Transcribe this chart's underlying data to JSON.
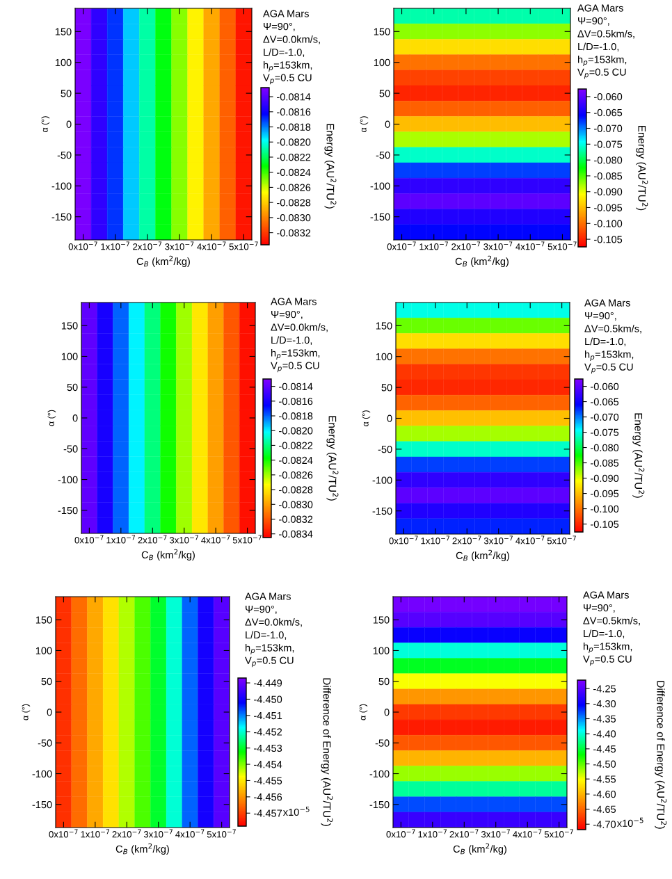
{
  "chart_data": [
    {
      "type": "heatmap",
      "xlabel": "C$_{B}$ (km$^{2}$/kg)",
      "ylabel": "α (°)",
      "clabel": "Energy (AU$^{2}$/TU$^{2}$)",
      "annotations": [
        "AGA Mars",
        "Ψ=90°,",
        "ΔV=0.0km/s,",
        "L/D=-1.0,",
        "h$_{p}$=153km,",
        "V$_{p}$=0.5 CU"
      ],
      "categories": [
        "0x10$^{−7}$",
        null,
        "1x10$^{−7}$",
        null,
        "2x10$^{−7}$",
        null,
        "3x10$^{−7}$",
        null,
        "4x10$^{−7}$",
        null,
        "5x10$^{−7}$"
      ],
      "y_categories": [
        null,
        "150",
        null,
        "100",
        null,
        "50",
        null,
        "0",
        null,
        "-50",
        null,
        "-100",
        null,
        "-150",
        null
      ],
      "cells": [
        [
          -0.0813,
          -0.0815,
          -0.0817,
          -0.0819,
          -0.0821,
          -0.0823,
          -0.0825,
          -0.0827,
          -0.0829,
          -0.0831,
          -0.0833
        ],
        [
          -0.0813,
          -0.0815,
          -0.0817,
          -0.0819,
          -0.0821,
          -0.0823,
          -0.0825,
          -0.0827,
          -0.0829,
          -0.0831,
          -0.0833
        ],
        [
          -0.0813,
          -0.0815,
          -0.0817,
          -0.0819,
          -0.0821,
          -0.0823,
          -0.0825,
          -0.0827,
          -0.0829,
          -0.0831,
          -0.0833
        ],
        [
          -0.0813,
          -0.0815,
          -0.0817,
          -0.0819,
          -0.0821,
          -0.0823,
          -0.0825,
          -0.0827,
          -0.0829,
          -0.0831,
          -0.0833
        ],
        [
          -0.0813,
          -0.0815,
          -0.0817,
          -0.0819,
          -0.0821,
          -0.0823,
          -0.0825,
          -0.0827,
          -0.0829,
          -0.0831,
          -0.0833
        ],
        [
          -0.0813,
          -0.0815,
          -0.0817,
          -0.0819,
          -0.0821,
          -0.0823,
          -0.0825,
          -0.0827,
          -0.0829,
          -0.0831,
          -0.0833
        ],
        [
          -0.0813,
          -0.0815,
          -0.0817,
          -0.0819,
          -0.0821,
          -0.0823,
          -0.0825,
          -0.0827,
          -0.0829,
          -0.0831,
          -0.0833
        ],
        [
          -0.0813,
          -0.0815,
          -0.0817,
          -0.0819,
          -0.0821,
          -0.0823,
          -0.0825,
          -0.0827,
          -0.0829,
          -0.0831,
          -0.0833
        ],
        [
          -0.0813,
          -0.0815,
          -0.0817,
          -0.0819,
          -0.0821,
          -0.0823,
          -0.0825,
          -0.0827,
          -0.0829,
          -0.0831,
          -0.0833
        ],
        [
          -0.0813,
          -0.0815,
          -0.0817,
          -0.0819,
          -0.0821,
          -0.0823,
          -0.0825,
          -0.0827,
          -0.0829,
          -0.0831,
          -0.0833
        ],
        [
          -0.0813,
          -0.0815,
          -0.0817,
          -0.0819,
          -0.0821,
          -0.0823,
          -0.0825,
          -0.0827,
          -0.0829,
          -0.0831,
          -0.0833
        ],
        [
          -0.0813,
          -0.0815,
          -0.0817,
          -0.0819,
          -0.0821,
          -0.0823,
          -0.0825,
          -0.0827,
          -0.0829,
          -0.0831,
          -0.0833
        ],
        [
          -0.0813,
          -0.0815,
          -0.0817,
          -0.0819,
          -0.0821,
          -0.0823,
          -0.0825,
          -0.0827,
          -0.0829,
          -0.0831,
          -0.0833
        ],
        [
          -0.0813,
          -0.0815,
          -0.0817,
          -0.0819,
          -0.0821,
          -0.0823,
          -0.0825,
          -0.0827,
          -0.0829,
          -0.0831,
          -0.0833
        ],
        [
          -0.0813,
          -0.0815,
          -0.0817,
          -0.0819,
          -0.0821,
          -0.0823,
          -0.0825,
          -0.0827,
          -0.0829,
          -0.0831,
          -0.0833
        ]
      ],
      "clim": [
        -0.08336,
        -0.08128
      ],
      "cticks": [
        {
          "value": -0.0814,
          "label": "-0.0814"
        },
        {
          "value": -0.0816,
          "label": "-0.0816"
        },
        {
          "value": -0.0818,
          "label": "-0.0818"
        },
        {
          "value": -0.082,
          "label": "-0.0820"
        },
        {
          "value": -0.0822,
          "label": "-0.0822"
        },
        {
          "value": -0.0824,
          "label": "-0.0824"
        },
        {
          "value": -0.0826,
          "label": "-0.0826"
        },
        {
          "value": -0.0828,
          "label": "-0.0828"
        },
        {
          "value": -0.083,
          "label": "-0.0830"
        },
        {
          "value": -0.0832,
          "label": "-0.0832"
        }
      ]
    },
    {
      "type": "heatmap",
      "xlabel": "C$_{B}$ (km$^{2}$/kg)",
      "ylabel": "α (°)",
      "clabel": "Energy (AU$^{2}$/TU$^{2}$)",
      "annotations": [
        "AGA Mars",
        "Ψ=90°,",
        "ΔV=0.5km/s,",
        "L/D=-1.0,",
        "h$_{p}$=153km,",
        "V$_{p}$=0.5 CU"
      ],
      "categories": [
        "0x10$^{−7}$",
        null,
        "1x10$^{−7}$",
        null,
        "2x10$^{−7}$",
        null,
        "3x10$^{−7}$",
        null,
        "4x10$^{−7}$",
        null,
        "5x10$^{−7}$"
      ],
      "y_categories": [
        null,
        "150",
        null,
        "100",
        null,
        "50",
        null,
        "0",
        null,
        "-50",
        null,
        "-100",
        null,
        "-150",
        null
      ],
      "cells": [
        [
          -0.077,
          -0.077,
          -0.077,
          -0.077,
          -0.077,
          -0.077,
          -0.077,
          -0.077,
          -0.077,
          -0.077,
          -0.077
        ],
        [
          -0.087,
          -0.087,
          -0.087,
          -0.087,
          -0.087,
          -0.087,
          -0.087,
          -0.087,
          -0.087,
          -0.087,
          -0.087
        ],
        [
          -0.093,
          -0.093,
          -0.093,
          -0.093,
          -0.093,
          -0.093,
          -0.093,
          -0.093,
          -0.093,
          -0.093,
          -0.093
        ],
        [
          -0.1,
          -0.1,
          -0.1,
          -0.1,
          -0.1,
          -0.1,
          -0.1,
          -0.1,
          -0.1,
          -0.1,
          -0.1
        ],
        [
          -0.103,
          -0.103,
          -0.103,
          -0.103,
          -0.103,
          -0.103,
          -0.103,
          -0.103,
          -0.103,
          -0.103,
          -0.103
        ],
        [
          -0.105,
          -0.105,
          -0.105,
          -0.105,
          -0.105,
          -0.105,
          -0.105,
          -0.105,
          -0.105,
          -0.105,
          -0.105
        ],
        [
          -0.101,
          -0.101,
          -0.101,
          -0.101,
          -0.101,
          -0.101,
          -0.101,
          -0.101,
          -0.101,
          -0.101,
          -0.101
        ],
        [
          -0.095,
          -0.095,
          -0.095,
          -0.095,
          -0.095,
          -0.095,
          -0.095,
          -0.095,
          -0.095,
          -0.095,
          -0.095
        ],
        [
          -0.088,
          -0.088,
          -0.088,
          -0.088,
          -0.088,
          -0.088,
          -0.088,
          -0.088,
          -0.088,
          -0.088,
          -0.088
        ],
        [
          -0.076,
          -0.076,
          -0.076,
          -0.076,
          -0.076,
          -0.076,
          -0.076,
          -0.076,
          -0.076,
          -0.076,
          -0.076
        ],
        [
          -0.068,
          -0.068,
          -0.068,
          -0.068,
          -0.068,
          -0.068,
          -0.068,
          -0.068,
          -0.068,
          -0.068,
          -0.068
        ],
        [
          -0.063,
          -0.063,
          -0.063,
          -0.063,
          -0.063,
          -0.063,
          -0.063,
          -0.063,
          -0.063,
          -0.063,
          -0.063
        ],
        [
          -0.06,
          -0.06,
          -0.06,
          -0.06,
          -0.06,
          -0.06,
          -0.06,
          -0.06,
          -0.06,
          -0.06,
          -0.06
        ],
        [
          -0.064,
          -0.064,
          -0.064,
          -0.064,
          -0.064,
          -0.064,
          -0.064,
          -0.064,
          -0.064,
          -0.064,
          -0.064
        ],
        [
          -0.066,
          -0.066,
          -0.066,
          -0.066,
          -0.066,
          -0.066,
          -0.066,
          -0.066,
          -0.066,
          -0.066,
          -0.066
        ]
      ],
      "clim": [
        -0.1074,
        -0.0576
      ],
      "cticks": [
        {
          "value": -0.06,
          "label": "-0.060"
        },
        {
          "value": -0.065,
          "label": "-0.065"
        },
        {
          "value": -0.07,
          "label": "-0.070"
        },
        {
          "value": -0.075,
          "label": "-0.075"
        },
        {
          "value": -0.08,
          "label": "-0.080"
        },
        {
          "value": -0.085,
          "label": "-0.085"
        },
        {
          "value": -0.09,
          "label": "-0.090"
        },
        {
          "value": -0.095,
          "label": "-0.095"
        },
        {
          "value": -0.1,
          "label": "-0.100"
        },
        {
          "value": -0.105,
          "label": "-0.105"
        }
      ]
    },
    {
      "type": "heatmap",
      "xlabel": "C$_{B}$ (km$^{2}$/kg)",
      "ylabel": "α (°)",
      "clabel": "Energy (AU$^{2}$/TU$^{2}$)",
      "annotations": [
        "AGA Mars",
        "Ψ=90°,",
        "ΔV=0.0km/s,",
        "L/D=-1.0,",
        "h$_{p}$=153km,",
        "V$_{p}$=0.5 CU"
      ],
      "categories": [
        "0x10$^{−7}$",
        null,
        "1x10$^{−7}$",
        null,
        "2x10$^{−7}$",
        null,
        "3x10$^{−7}$",
        null,
        "4x10$^{−7}$",
        null,
        "5x10$^{−7}$"
      ],
      "y_categories": [
        null,
        "150",
        null,
        "100",
        null,
        "50",
        null,
        "0",
        null,
        "-50",
        null,
        "-100",
        null,
        "-150",
        null
      ],
      "cells": [
        [
          -0.0814,
          -0.0816,
          -0.0818,
          -0.082,
          -0.0822,
          -0.0824,
          -0.0826,
          -0.0828,
          -0.083,
          -0.0832,
          -0.0834
        ],
        [
          -0.0814,
          -0.0816,
          -0.0818,
          -0.082,
          -0.0822,
          -0.0824,
          -0.0826,
          -0.0828,
          -0.083,
          -0.0832,
          -0.0834
        ],
        [
          -0.0814,
          -0.0816,
          -0.0818,
          -0.082,
          -0.0822,
          -0.0824,
          -0.0826,
          -0.0828,
          -0.083,
          -0.0832,
          -0.0834
        ],
        [
          -0.0814,
          -0.0816,
          -0.0818,
          -0.082,
          -0.0822,
          -0.0824,
          -0.0826,
          -0.0828,
          -0.083,
          -0.0832,
          -0.0834
        ],
        [
          -0.0814,
          -0.0816,
          -0.0818,
          -0.082,
          -0.0822,
          -0.0824,
          -0.0826,
          -0.0828,
          -0.083,
          -0.0832,
          -0.0834
        ],
        [
          -0.0814,
          -0.0816,
          -0.0818,
          -0.082,
          -0.0822,
          -0.0824,
          -0.0826,
          -0.0828,
          -0.083,
          -0.0832,
          -0.0834
        ],
        [
          -0.0814,
          -0.0816,
          -0.0818,
          -0.082,
          -0.0822,
          -0.0824,
          -0.0826,
          -0.0828,
          -0.083,
          -0.0832,
          -0.0834
        ],
        [
          -0.0814,
          -0.0816,
          -0.0818,
          -0.082,
          -0.0822,
          -0.0824,
          -0.0826,
          -0.0828,
          -0.083,
          -0.0832,
          -0.0834
        ],
        [
          -0.0814,
          -0.0816,
          -0.0818,
          -0.082,
          -0.0822,
          -0.0824,
          -0.0826,
          -0.0828,
          -0.083,
          -0.0832,
          -0.0834
        ],
        [
          -0.0814,
          -0.0816,
          -0.0818,
          -0.082,
          -0.0822,
          -0.0824,
          -0.0826,
          -0.0828,
          -0.083,
          -0.0832,
          -0.0834
        ],
        [
          -0.0814,
          -0.0816,
          -0.0818,
          -0.082,
          -0.0822,
          -0.0824,
          -0.0826,
          -0.0828,
          -0.083,
          -0.0832,
          -0.0834
        ],
        [
          -0.0814,
          -0.0816,
          -0.0818,
          -0.082,
          -0.0822,
          -0.0824,
          -0.0826,
          -0.0828,
          -0.083,
          -0.0832,
          -0.0834
        ],
        [
          -0.0814,
          -0.0816,
          -0.0818,
          -0.082,
          -0.0822,
          -0.0824,
          -0.0826,
          -0.0828,
          -0.083,
          -0.0832,
          -0.0834
        ],
        [
          -0.0814,
          -0.0816,
          -0.0818,
          -0.082,
          -0.0822,
          -0.0824,
          -0.0826,
          -0.0828,
          -0.083,
          -0.0832,
          -0.0834
        ],
        [
          -0.0814,
          -0.0816,
          -0.0818,
          -0.082,
          -0.0822,
          -0.0824,
          -0.0826,
          -0.0828,
          -0.083,
          -0.0832,
          -0.0834
        ]
      ],
      "clim": [
        -0.08345,
        -0.0813
      ],
      "cticks": [
        {
          "value": -0.0814,
          "label": "-0.0814"
        },
        {
          "value": -0.0816,
          "label": "-0.0816"
        },
        {
          "value": -0.0818,
          "label": "-0.0818"
        },
        {
          "value": -0.082,
          "label": "-0.0820"
        },
        {
          "value": -0.0822,
          "label": "-0.0822"
        },
        {
          "value": -0.0824,
          "label": "-0.0824"
        },
        {
          "value": -0.0826,
          "label": "-0.0826"
        },
        {
          "value": -0.0828,
          "label": "-0.0828"
        },
        {
          "value": -0.083,
          "label": "-0.0830"
        },
        {
          "value": -0.0832,
          "label": "-0.0832"
        },
        {
          "value": -0.0834,
          "label": "-0.0834"
        }
      ]
    },
    {
      "type": "heatmap",
      "xlabel": "C$_{B}$ (km$^{2}$/kg)",
      "ylabel": "α (°)",
      "clabel": "Energy (AU$^{2}$/TU$^{2}$)",
      "annotations": [
        "AGA Mars",
        "Ψ=90°,",
        "ΔV=0.5km/s,",
        "L/D=-1.0,",
        "h$_{p}$=153km,",
        "V$_{p}$=0.5 CU"
      ],
      "categories": [
        "0x10$^{−7}$",
        null,
        "1x10$^{−7}$",
        null,
        "2x10$^{−7}$",
        null,
        "3x10$^{−7}$",
        null,
        "4x10$^{−7}$",
        null,
        "5x10$^{−7}$"
      ],
      "y_categories": [
        null,
        "150",
        null,
        "100",
        null,
        "50",
        null,
        "0",
        null,
        "-50",
        null,
        "-100",
        null,
        "-150",
        null
      ],
      "cells": [
        [
          -0.075,
          -0.075,
          -0.075,
          -0.075,
          -0.075,
          -0.075,
          -0.075,
          -0.075,
          -0.075,
          -0.075,
          -0.075
        ],
        [
          -0.086,
          -0.086,
          -0.086,
          -0.086,
          -0.086,
          -0.086,
          -0.086,
          -0.086,
          -0.086,
          -0.086,
          -0.086
        ],
        [
          -0.093,
          -0.093,
          -0.093,
          -0.093,
          -0.093,
          -0.093,
          -0.093,
          -0.093,
          -0.093,
          -0.093,
          -0.093
        ],
        [
          -0.1,
          -0.1,
          -0.1,
          -0.1,
          -0.1,
          -0.1,
          -0.1,
          -0.1,
          -0.1,
          -0.1,
          -0.1
        ],
        [
          -0.104,
          -0.104,
          -0.104,
          -0.104,
          -0.104,
          -0.104,
          -0.104,
          -0.104,
          -0.104,
          -0.104,
          -0.104
        ],
        [
          -0.105,
          -0.105,
          -0.105,
          -0.105,
          -0.105,
          -0.105,
          -0.105,
          -0.105,
          -0.105,
          -0.105,
          -0.105
        ],
        [
          -0.101,
          -0.101,
          -0.101,
          -0.101,
          -0.101,
          -0.101,
          -0.101,
          -0.101,
          -0.101,
          -0.101,
          -0.101
        ],
        [
          -0.095,
          -0.095,
          -0.095,
          -0.095,
          -0.095,
          -0.095,
          -0.095,
          -0.095,
          -0.095,
          -0.095,
          -0.095
        ],
        [
          -0.088,
          -0.088,
          -0.088,
          -0.088,
          -0.088,
          -0.088,
          -0.088,
          -0.088,
          -0.088,
          -0.088,
          -0.088
        ],
        [
          -0.076,
          -0.076,
          -0.076,
          -0.076,
          -0.076,
          -0.076,
          -0.076,
          -0.076,
          -0.076,
          -0.076,
          -0.076
        ],
        [
          -0.068,
          -0.068,
          -0.068,
          -0.068,
          -0.068,
          -0.068,
          -0.068,
          -0.068,
          -0.068,
          -0.068,
          -0.068
        ],
        [
          -0.063,
          -0.063,
          -0.063,
          -0.063,
          -0.063,
          -0.063,
          -0.063,
          -0.063,
          -0.063,
          -0.063,
          -0.063
        ],
        [
          -0.06,
          -0.06,
          -0.06,
          -0.06,
          -0.06,
          -0.06,
          -0.06,
          -0.06,
          -0.06,
          -0.06,
          -0.06
        ],
        [
          -0.064,
          -0.064,
          -0.064,
          -0.064,
          -0.064,
          -0.064,
          -0.064,
          -0.064,
          -0.064,
          -0.064,
          -0.064
        ],
        [
          -0.067,
          -0.067,
          -0.067,
          -0.067,
          -0.067,
          -0.067,
          -0.067,
          -0.067,
          -0.067,
          -0.067,
          -0.067
        ]
      ],
      "clim": [
        -0.1076,
        -0.0576
      ],
      "cticks": [
        {
          "value": -0.06,
          "label": "-0.060"
        },
        {
          "value": -0.065,
          "label": "-0.065"
        },
        {
          "value": -0.07,
          "label": "-0.070"
        },
        {
          "value": -0.075,
          "label": "-0.075"
        },
        {
          "value": -0.08,
          "label": "-0.080"
        },
        {
          "value": -0.085,
          "label": "-0.085"
        },
        {
          "value": -0.09,
          "label": "-0.090"
        },
        {
          "value": -0.095,
          "label": "-0.095"
        },
        {
          "value": -0.1,
          "label": "-0.100"
        },
        {
          "value": -0.105,
          "label": "-0.105"
        }
      ]
    },
    {
      "type": "heatmap",
      "xlabel": "C$_{B}$ (km$^{2}$/kg)",
      "ylabel": "α (°)",
      "clabel": "Difference of Energy (AU$^{2}$/TU$^{2}$)",
      "annotations": [
        "AGA Mars",
        "Ψ=90°,",
        "ΔV=0.0km/s,",
        "L/D=-1.0,",
        "h$_{p}$=153km,",
        "V$_{p}$=0.5 CU",
        {
          "text": "x10$^{−5}$"
        }
      ],
      "categories": [
        "0x10$^{−7}$",
        null,
        "1x10$^{−7}$",
        null,
        "2x10$^{−7}$",
        null,
        "3x10$^{−7}$",
        null,
        "4x10$^{−7}$",
        null,
        "5x10$^{−7}$"
      ],
      "y_categories": [
        null,
        "150",
        null,
        "100",
        null,
        "50",
        null,
        "0",
        null,
        "-50",
        null,
        "-100",
        null,
        "-150",
        null
      ],
      "cells": [
        [
          -4.4572,
          -4.4565,
          -4.4558,
          -4.4551,
          -4.4543,
          -4.4537,
          -4.453,
          -4.452,
          -4.4508,
          -4.45,
          -4.4492
        ],
        [
          -4.4572,
          -4.4565,
          -4.4558,
          -4.4551,
          -4.4543,
          -4.4537,
          -4.453,
          -4.452,
          -4.4508,
          -4.45,
          -4.4492
        ],
        [
          -4.4572,
          -4.4565,
          -4.4558,
          -4.4551,
          -4.4543,
          -4.4537,
          -4.453,
          -4.452,
          -4.4508,
          -4.45,
          -4.4492
        ],
        [
          -4.4572,
          -4.4565,
          -4.4558,
          -4.4551,
          -4.4543,
          -4.4537,
          -4.453,
          -4.452,
          -4.4508,
          -4.45,
          -4.4492
        ],
        [
          -4.4572,
          -4.4565,
          -4.4558,
          -4.4551,
          -4.4543,
          -4.4537,
          -4.453,
          -4.452,
          -4.4508,
          -4.45,
          -4.4492
        ],
        [
          -4.4572,
          -4.4565,
          -4.4558,
          -4.4551,
          -4.4543,
          -4.4537,
          -4.453,
          -4.452,
          -4.4508,
          -4.45,
          -4.4492
        ],
        [
          -4.4572,
          -4.4565,
          -4.4558,
          -4.4551,
          -4.4543,
          -4.4537,
          -4.453,
          -4.452,
          -4.4508,
          -4.45,
          -4.4492
        ],
        [
          -4.4572,
          -4.4565,
          -4.4558,
          -4.4551,
          -4.4543,
          -4.4537,
          -4.453,
          -4.452,
          -4.4508,
          -4.45,
          -4.4492
        ],
        [
          -4.4572,
          -4.4565,
          -4.4558,
          -4.4551,
          -4.4543,
          -4.4537,
          -4.453,
          -4.452,
          -4.4508,
          -4.45,
          -4.4492
        ],
        [
          -4.4572,
          -4.4565,
          -4.4558,
          -4.4551,
          -4.4543,
          -4.4537,
          -4.453,
          -4.452,
          -4.4508,
          -4.45,
          -4.4492
        ],
        [
          -4.4572,
          -4.4565,
          -4.4558,
          -4.4551,
          -4.4543,
          -4.4537,
          -4.453,
          -4.452,
          -4.4508,
          -4.45,
          -4.4492
        ],
        [
          -4.4572,
          -4.4565,
          -4.4558,
          -4.4551,
          -4.4543,
          -4.4537,
          -4.453,
          -4.452,
          -4.4508,
          -4.45,
          -4.4492
        ],
        [
          -4.4572,
          -4.4565,
          -4.4558,
          -4.4551,
          -4.4543,
          -4.4537,
          -4.453,
          -4.452,
          -4.4508,
          -4.45,
          -4.4492
        ],
        [
          -4.4572,
          -4.4565,
          -4.4558,
          -4.4551,
          -4.4543,
          -4.4537,
          -4.453,
          -4.452,
          -4.4508,
          -4.45,
          -4.4492
        ],
        [
          -4.4572,
          -4.4565,
          -4.4558,
          -4.4551,
          -4.4543,
          -4.4537,
          -4.453,
          -4.452,
          -4.4508,
          -4.45,
          -4.4492
        ]
      ],
      "clim": [
        -4.4578,
        -4.4487
      ],
      "cticks": [
        {
          "value": -4.449,
          "label": "-4.449"
        },
        {
          "value": -4.45,
          "label": "-4.450"
        },
        {
          "value": -4.451,
          "label": "-4.451"
        },
        {
          "value": -4.452,
          "label": "-4.452"
        },
        {
          "value": -4.453,
          "label": "-4.453"
        },
        {
          "value": -4.454,
          "label": "-4.454"
        },
        {
          "value": -4.455,
          "label": "-4.455"
        },
        {
          "value": -4.456,
          "label": "-4.456"
        },
        {
          "value": -4.457,
          "label": "-4.457"
        }
      ]
    },
    {
      "type": "heatmap",
      "xlabel": "C$_{B}$ (km$^{2}$/kg)",
      "ylabel": "α (°)",
      "clabel": "Difference of Energy (AU$^{2}$/TU$^{2}$)",
      "annotations": [
        "AGA Mars",
        "Ψ=90°,",
        "ΔV=0.5km/s,",
        "L/D=-1.0,",
        "h$_{p}$=153km,",
        "V$_{p}$=0.5 CU",
        {
          "text": "x10$^{−5}$"
        }
      ],
      "categories": [
        "0x10$^{−7}$",
        null,
        "1x10$^{−7}$",
        null,
        "2x10$^{−7}$",
        null,
        "3x10$^{−7}$",
        null,
        "4x10$^{−7}$",
        null,
        "5x10$^{−7}$"
      ],
      "y_categories": [
        null,
        "150",
        null,
        "100",
        null,
        "50",
        null,
        "0",
        null,
        "-50",
        null,
        "-100",
        null,
        "-150",
        null
      ],
      "cells": [
        [
          -4.23,
          -4.23,
          -4.23,
          -4.23,
          -4.23,
          -4.23,
          -4.23,
          -4.23,
          -4.23,
          -4.23,
          -4.23
        ],
        [
          -4.25,
          -4.25,
          -4.25,
          -4.25,
          -4.25,
          -4.25,
          -4.25,
          -4.25,
          -4.25,
          -4.25,
          -4.25
        ],
        [
          -4.3,
          -4.3,
          -4.3,
          -4.3,
          -4.3,
          -4.3,
          -4.3,
          -4.3,
          -4.3,
          -4.3,
          -4.3
        ],
        [
          -4.4,
          -4.4,
          -4.4,
          -4.4,
          -4.4,
          -4.4,
          -4.4,
          -4.4,
          -4.4,
          -4.4,
          -4.4
        ],
        [
          -4.46,
          -4.46,
          -4.46,
          -4.46,
          -4.46,
          -4.46,
          -4.46,
          -4.46,
          -4.46,
          -4.46,
          -4.46
        ],
        [
          -4.55,
          -4.55,
          -4.55,
          -4.55,
          -4.55,
          -4.55,
          -4.55,
          -4.55,
          -4.55,
          -4.55,
          -4.55
        ],
        [
          -4.62,
          -4.62,
          -4.62,
          -4.62,
          -4.62,
          -4.62,
          -4.62,
          -4.62,
          -4.62,
          -4.62,
          -4.62
        ],
        [
          -4.68,
          -4.68,
          -4.68,
          -4.68,
          -4.68,
          -4.68,
          -4.68,
          -4.68,
          -4.68,
          -4.68,
          -4.68
        ],
        [
          -4.7,
          -4.7,
          -4.7,
          -4.7,
          -4.7,
          -4.7,
          -4.7,
          -4.7,
          -4.7,
          -4.7,
          -4.7
        ],
        [
          -4.66,
          -4.66,
          -4.66,
          -4.66,
          -4.66,
          -4.66,
          -4.66,
          -4.66,
          -4.66,
          -4.66,
          -4.66
        ],
        [
          -4.6,
          -4.6,
          -4.6,
          -4.6,
          -4.6,
          -4.6,
          -4.6,
          -4.6,
          -4.6,
          -4.6,
          -4.6
        ],
        [
          -4.52,
          -4.52,
          -4.52,
          -4.52,
          -4.52,
          -4.52,
          -4.52,
          -4.52,
          -4.52,
          -4.52,
          -4.52
        ],
        [
          -4.42,
          -4.42,
          -4.42,
          -4.42,
          -4.42,
          -4.42,
          -4.42,
          -4.42,
          -4.42,
          -4.42,
          -4.42
        ],
        [
          -4.33,
          -4.33,
          -4.33,
          -4.33,
          -4.33,
          -4.33,
          -4.33,
          -4.33,
          -4.33,
          -4.33,
          -4.33
        ],
        [
          -4.27,
          -4.27,
          -4.27,
          -4.27,
          -4.27,
          -4.27,
          -4.27,
          -4.27,
          -4.27,
          -4.27,
          -4.27
        ]
      ],
      "clim": [
        -4.718,
        -4.222
      ],
      "cticks": [
        {
          "value": -4.25,
          "label": "-4.25"
        },
        {
          "value": -4.3,
          "label": "-4.30"
        },
        {
          "value": -4.35,
          "label": "-4.35"
        },
        {
          "value": -4.4,
          "label": "-4.40"
        },
        {
          "value": -4.45,
          "label": "-4.45"
        },
        {
          "value": -4.5,
          "label": "-4.50"
        },
        {
          "value": -4.55,
          "label": "-4.55"
        },
        {
          "value": -4.6,
          "label": "-4.60"
        },
        {
          "value": -4.65,
          "label": "-4.65"
        },
        {
          "value": -4.7,
          "label": "-4.70"
        }
      ]
    }
  ]
}
